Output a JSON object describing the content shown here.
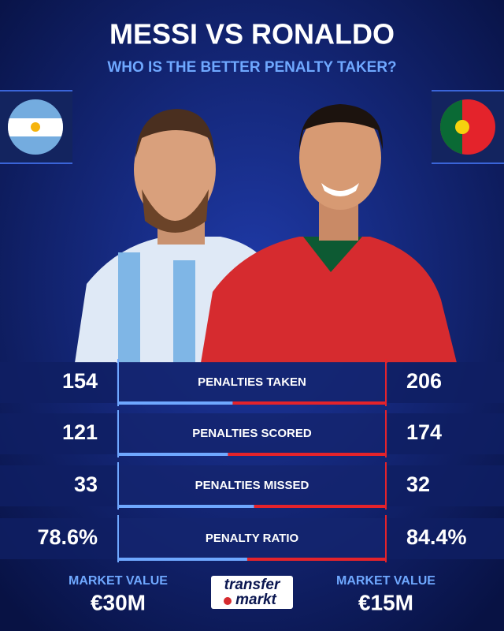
{
  "header": {
    "title": "MESSI VS RONALDO",
    "subtitle": "WHO IS THE BETTER PENALTY TAKER?"
  },
  "stats": [
    {
      "label": "PENALTIES TAKEN",
      "messi": 154,
      "ronaldo": 206
    },
    {
      "label": "PENALTIES SCORED",
      "messi": 121,
      "ronaldo": 174
    },
    {
      "label": "PENALTIES MISSED",
      "messi": 33,
      "ronaldo": 32
    },
    {
      "label": "PENALTY RATIO",
      "messi": {
        "value": 78.6,
        "label": "78.6%"
      },
      "ronaldo": {
        "value": 84.4,
        "label": "84.4%"
      }
    }
  ],
  "footer": {
    "messi": {
      "caption": "MARKET VALUE",
      "value": "€30M"
    },
    "ronaldo": {
      "caption": "MARKET VALUE",
      "value": "€15M"
    },
    "logo": {
      "line1": "transfer",
      "line2": "markt"
    }
  }
}
